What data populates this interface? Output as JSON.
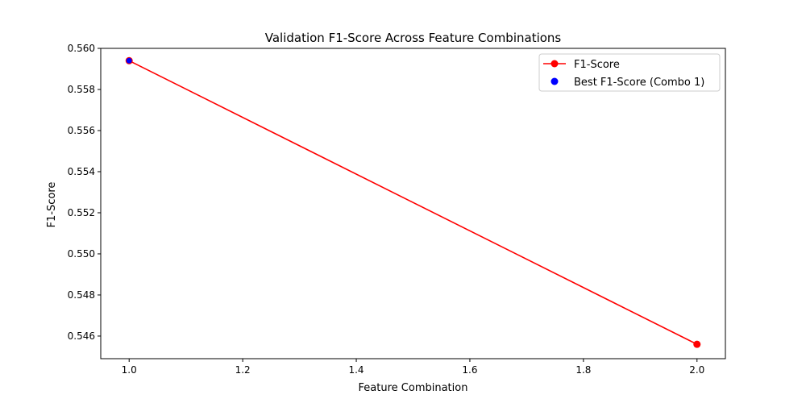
{
  "chart_data": {
    "type": "line",
    "title": "Validation F1-Score Across Feature Combinations",
    "xlabel": "Feature Combination",
    "ylabel": "F1-Score",
    "xlim": [
      0.95,
      2.05
    ],
    "ylim": [
      0.5449,
      0.56
    ],
    "xticks": [
      1.0,
      1.2,
      1.4,
      1.6,
      1.8,
      2.0
    ],
    "xtick_labels": [
      "1.0",
      "1.2",
      "1.4",
      "1.6",
      "1.8",
      "2.0"
    ],
    "yticks": [
      0.546,
      0.548,
      0.55,
      0.552,
      0.554,
      0.556,
      0.558,
      0.56
    ],
    "ytick_labels": [
      "0.546",
      "0.548",
      "0.550",
      "0.552",
      "0.554",
      "0.556",
      "0.558",
      "0.560"
    ],
    "grid": false,
    "legend_position": "upper right",
    "series": [
      {
        "name": "F1-Score",
        "kind": "line-marker",
        "color": "#ff0000",
        "x": [
          1.0,
          2.0
        ],
        "y": [
          0.5594,
          0.5456
        ]
      },
      {
        "name": "Best F1-Score (Combo 1)",
        "kind": "scatter",
        "color": "#0000ff",
        "x": [
          1.0
        ],
        "y": [
          0.5594
        ]
      }
    ]
  }
}
